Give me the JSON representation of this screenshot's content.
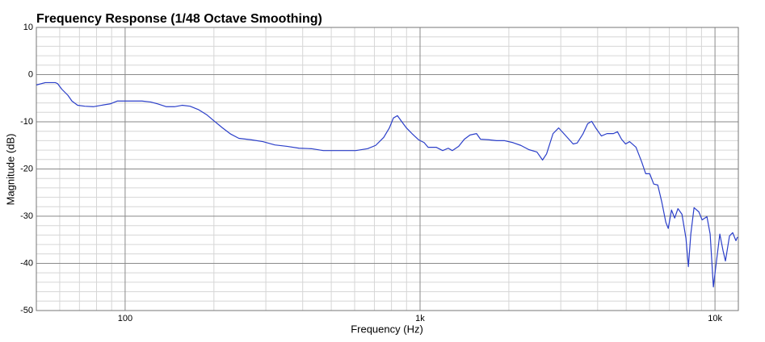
{
  "chart_data": {
    "type": "line",
    "title": "Frequency Response (1/48 Octave Smoothing)",
    "x_label": "Frequency (Hz)",
    "y_label": "Magnitude (dB)",
    "xscale": "log",
    "xlim": [
      50,
      12000
    ],
    "xticks": [
      {
        "value": 100,
        "label": "100"
      },
      {
        "value": 1000,
        "label": "1k"
      },
      {
        "value": 10000,
        "label": "10k"
      }
    ],
    "ylim": [
      -50,
      10
    ],
    "yticks": [
      10,
      0,
      -10,
      -20,
      -30,
      -40,
      -50
    ],
    "grid": true,
    "minor_grid": true,
    "color": "#2b3fc9",
    "x": [
      50,
      53.6,
      58,
      59,
      61,
      64,
      66,
      69,
      73,
      78,
      83,
      89,
      94,
      101,
      107,
      114,
      122,
      129,
      138,
      147,
      156,
      166,
      177,
      189,
      201,
      214,
      228,
      243,
      267,
      293,
      322,
      354,
      389,
      428,
      470,
      533,
      605,
      664,
      707,
      753,
      787,
      812,
      838,
      865,
      899,
      939,
      988,
      1032,
      1065,
      1134,
      1193,
      1246,
      1286,
      1352,
      1413,
      1477,
      1554,
      1603,
      1707,
      1818,
      1936,
      2062,
      2196,
      2338,
      2490,
      2602,
      2685,
      2824,
      2951,
      3103,
      3304,
      3410,
      3565,
      3701,
      3819,
      3941,
      4119,
      4304,
      4526,
      4670,
      4821,
      4975,
      5134,
      5398,
      5642,
      5821,
      6007,
      6199,
      6397,
      6601,
      6813,
      6942,
      7120,
      7301,
      7487,
      7727,
      7973,
      8125,
      8279,
      8492,
      8819,
      9044,
      9391,
      9630,
      9875,
      10063,
      10385,
      10649,
      10851,
      11199,
      11484,
      11776,
      11925
    ],
    "values": [
      -2.2,
      -1.7,
      -1.7,
      -1.9,
      -3.1,
      -4.4,
      -5.6,
      -6.5,
      -6.7,
      -6.8,
      -6.5,
      -6.2,
      -5.6,
      -5.6,
      -5.6,
      -5.6,
      -5.8,
      -6.2,
      -6.8,
      -6.8,
      -6.5,
      -6.7,
      -7.4,
      -8.5,
      -9.9,
      -11.3,
      -12.6,
      -13.5,
      -13.8,
      -14.2,
      -14.9,
      -15.2,
      -15.6,
      -15.7,
      -16.1,
      -16.1,
      -16.1,
      -15.7,
      -15.0,
      -13.3,
      -11.3,
      -9.2,
      -8.7,
      -9.9,
      -11.3,
      -12.5,
      -13.8,
      -14.4,
      -15.4,
      -15.4,
      -16.1,
      -15.6,
      -16.1,
      -15.2,
      -13.7,
      -12.8,
      -12.5,
      -13.7,
      -13.8,
      -14.0,
      -14.0,
      -14.4,
      -15.0,
      -15.9,
      -16.4,
      -18.1,
      -16.8,
      -12.5,
      -11.3,
      -12.8,
      -14.7,
      -14.5,
      -12.6,
      -10.4,
      -9.9,
      -11.3,
      -13.0,
      -12.5,
      -12.5,
      -12.1,
      -13.7,
      -14.7,
      -14.2,
      -15.4,
      -18.5,
      -21.0,
      -21.0,
      -23.2,
      -23.4,
      -27.0,
      -31.3,
      -32.6,
      -28.7,
      -30.4,
      -28.4,
      -29.6,
      -34.7,
      -40.7,
      -33.8,
      -28.2,
      -29.1,
      -30.8,
      -30.1,
      -33.8,
      -45.0,
      -40.7,
      -33.8,
      -37.3,
      -39.5,
      -34.2,
      -33.5,
      -35.2,
      -34.4
    ]
  }
}
